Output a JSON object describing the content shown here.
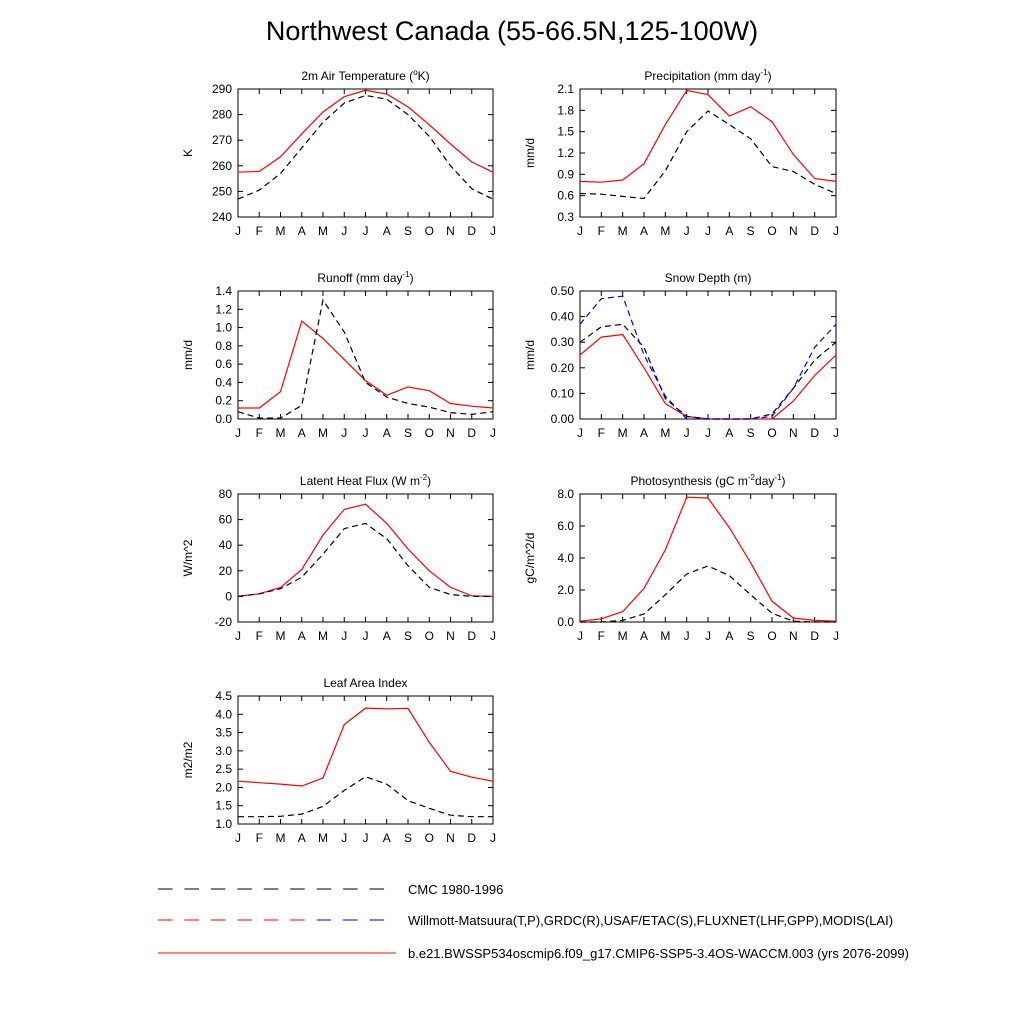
{
  "title": "Northwest Canada (55-66.5N,125-100W)",
  "months": [
    "J",
    "F",
    "M",
    "A",
    "M",
    "J",
    "J",
    "A",
    "S",
    "O",
    "N",
    "D",
    "J"
  ],
  "colors": {
    "model": "#ff0000",
    "obs": "#000000",
    "obs_alt": "#0000ff"
  },
  "legend": [
    {
      "label": "CMC 1980-1996",
      "style": "dash",
      "colors": [
        "#000000"
      ]
    },
    {
      "label": "Willmott-Matsuura(T,P),GRDC(R),USAF/ETAC(S),FLUXNET(LHF,GPP),MODIS(LAI)",
      "style": "dash",
      "colors": [
        "#ff0000",
        "#ff0000",
        "#0000ff"
      ]
    },
    {
      "label": "b.e21.BWSSP534oscmip6.f09_g17.CMIP6-SSP5-3.4OS-WACCM.003 (yrs 2076-2099)",
      "style": "solid",
      "colors": [
        "#ff0000"
      ]
    }
  ],
  "chart_data": [
    {
      "type": "line",
      "title": "2m Air Temperature (°K)",
      "title_main": "2m Air Temperature (",
      "title_sup": "o",
      "title_tail": "K)",
      "ylabel": "K",
      "ylim": [
        240,
        290
      ],
      "yticks": [
        "240",
        "250",
        "260",
        "270",
        "280",
        "290"
      ],
      "series": [
        {
          "role": "model",
          "values": [
            257.5,
            257.8,
            263.5,
            272.5,
            281.0,
            287.0,
            289.5,
            288.0,
            283.0,
            276.0,
            268.5,
            261.5,
            257.5
          ]
        },
        {
          "role": "obs",
          "values": [
            247.0,
            250.5,
            257.0,
            267.0,
            277.0,
            284.5,
            287.5,
            286.0,
            280.0,
            271.5,
            260.0,
            251.0,
            247.0
          ]
        }
      ]
    },
    {
      "type": "line",
      "title": "Precipitation (mm day-1)",
      "title_main": "Precipitation (mm day",
      "title_sup": "-1",
      "title_tail": ")",
      "ylabel": "mm/d",
      "ylim": [
        0.3,
        2.1
      ],
      "yticks": [
        "0.3",
        "0.6",
        "0.9",
        "1.2",
        "1.5",
        "1.8",
        "2.1"
      ],
      "series": [
        {
          "role": "model",
          "values": [
            0.8,
            0.79,
            0.82,
            1.05,
            1.6,
            2.08,
            2.02,
            1.72,
            1.85,
            1.64,
            1.18,
            0.84,
            0.8
          ]
        },
        {
          "role": "obs",
          "values": [
            0.63,
            0.62,
            0.59,
            0.56,
            0.95,
            1.5,
            1.79,
            1.6,
            1.4,
            1.01,
            0.94,
            0.76,
            0.63
          ]
        }
      ]
    },
    {
      "type": "line",
      "title": "Runoff (mm day-1)",
      "title_main": "Runoff (mm day",
      "title_sup": "-1",
      "title_tail": ")",
      "ylabel": "mm/d",
      "ylim": [
        0.0,
        1.4
      ],
      "yticks": [
        "0.0",
        "0.2",
        "0.4",
        "0.6",
        "0.8",
        "1.0",
        "1.2",
        "1.4"
      ],
      "series": [
        {
          "role": "model",
          "values": [
            0.12,
            0.12,
            0.3,
            1.07,
            0.88,
            0.65,
            0.42,
            0.26,
            0.35,
            0.31,
            0.17,
            0.14,
            0.12
          ]
        },
        {
          "role": "obs",
          "values": [
            0.08,
            0.01,
            0.01,
            0.15,
            1.3,
            0.95,
            0.4,
            0.24,
            0.17,
            0.13,
            0.07,
            0.05,
            0.08
          ]
        }
      ]
    },
    {
      "type": "line",
      "title": "Snow Depth (m)",
      "title_main": "Snow Depth (m)",
      "title_sup": "",
      "title_tail": "",
      "ylabel": "mm/d",
      "ylim": [
        0.0,
        0.5
      ],
      "yticks": [
        "0.00",
        "0.10",
        "0.20",
        "0.30",
        "0.40",
        "0.50"
      ],
      "series": [
        {
          "role": "model",
          "values": [
            0.25,
            0.32,
            0.33,
            0.2,
            0.06,
            0.01,
            0.0,
            0.0,
            0.0,
            0.0,
            0.07,
            0.17,
            0.25
          ]
        },
        {
          "role": "obs",
          "values": [
            0.3,
            0.36,
            0.37,
            0.28,
            0.08,
            0.01,
            0.0,
            0.0,
            0.0,
            0.02,
            0.12,
            0.23,
            0.3
          ]
        },
        {
          "role": "obs_alt",
          "values": [
            0.37,
            0.47,
            0.48,
            0.25,
            0.09,
            0.0,
            0.0,
            0.0,
            0.0,
            0.01,
            0.12,
            0.28,
            0.37
          ]
        }
      ]
    },
    {
      "type": "line",
      "title": "Latent Heat Flux (W m-2)",
      "title_main": "Latent Heat Flux (W m",
      "title_sup": "-2",
      "title_tail": ")",
      "ylabel": "W/m^2",
      "ylim": [
        -20,
        80
      ],
      "yticks": [
        "-20",
        "0",
        "20",
        "40",
        "60",
        "80"
      ],
      "series": [
        {
          "role": "model",
          "values": [
            0.0,
            2.0,
            7.0,
            21.0,
            48.0,
            68.0,
            72.0,
            57.0,
            37.0,
            20.0,
            7.0,
            0.5,
            0.0
          ]
        },
        {
          "role": "obs",
          "values": [
            0.0,
            2.0,
            6.0,
            15.0,
            33.0,
            53.0,
            57.0,
            45.0,
            24.0,
            7.0,
            1.5,
            0.0,
            0.0
          ]
        }
      ]
    },
    {
      "type": "line",
      "title": "Photosynthesis (gC m-2day-1)",
      "title_main": "Photosynthesis (gC m",
      "title_sup": "-2",
      "title_tail": "day",
      "title_sup2": "-1",
      "title_tail2": ")",
      "ylabel": "gC/m^2/d",
      "ylim": [
        0.0,
        8.0
      ],
      "yticks": [
        "0.0",
        "2.0",
        "4.0",
        "6.0",
        "8.0"
      ],
      "series": [
        {
          "role": "model",
          "values": [
            0.05,
            0.2,
            0.65,
            2.1,
            4.5,
            7.8,
            7.75,
            5.9,
            3.7,
            1.3,
            0.25,
            0.1,
            0.05
          ]
        },
        {
          "role": "obs",
          "values": [
            0.0,
            0.0,
            0.1,
            0.5,
            1.7,
            3.0,
            3.5,
            2.9,
            1.7,
            0.55,
            0.05,
            0.0,
            0.0
          ]
        }
      ]
    },
    {
      "type": "line",
      "title": "Leaf Area Index",
      "title_main": "Leaf Area Index",
      "title_sup": "",
      "title_tail": "",
      "ylabel": "m2/m2",
      "ylim": [
        1.0,
        4.5
      ],
      "yticks": [
        "1.0",
        "1.5",
        "2.0",
        "2.5",
        "3.0",
        "3.5",
        "4.0",
        "4.5"
      ],
      "series": [
        {
          "role": "model",
          "values": [
            2.17,
            2.13,
            2.09,
            2.04,
            2.26,
            3.72,
            4.17,
            4.15,
            4.16,
            3.23,
            2.44,
            2.28,
            2.17
          ]
        },
        {
          "role": "obs",
          "values": [
            1.2,
            1.2,
            1.21,
            1.27,
            1.48,
            1.92,
            2.29,
            2.09,
            1.64,
            1.43,
            1.24,
            1.2,
            1.2
          ]
        }
      ]
    }
  ]
}
